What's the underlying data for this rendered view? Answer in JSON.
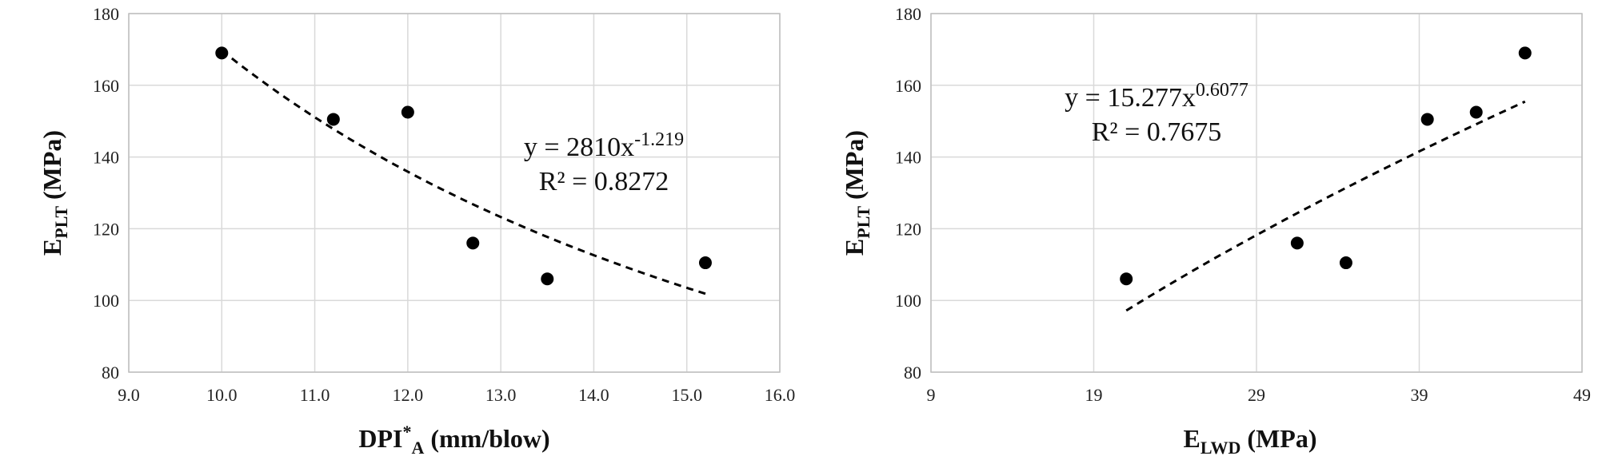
{
  "chart_data": [
    {
      "type": "scatter",
      "x_title": {
        "main": "DPI",
        "sup": "*",
        "sub": "A",
        "rest": " (mm/blow)"
      },
      "y_title": {
        "main": "E",
        "sub": "PLT",
        "rest": " (MPa)"
      },
      "xlim": [
        9.0,
        16.0
      ],
      "ylim": [
        80,
        180
      ],
      "x_ticks": [
        "9.0",
        "10.0",
        "11.0",
        "12.0",
        "13.0",
        "14.0",
        "15.0",
        "16.0"
      ],
      "x_tick_values": [
        9,
        10,
        11,
        12,
        13,
        14,
        15,
        16
      ],
      "y_ticks": [
        "80",
        "100",
        "120",
        "140",
        "160",
        "180"
      ],
      "y_tick_values": [
        80,
        100,
        120,
        140,
        160,
        180
      ],
      "points": [
        {
          "x": 10.0,
          "y": 169
        },
        {
          "x": 11.2,
          "y": 150.5
        },
        {
          "x": 12.0,
          "y": 152.5
        },
        {
          "x": 12.7,
          "y": 116
        },
        {
          "x": 13.5,
          "y": 106
        },
        {
          "x": 15.2,
          "y": 110.5
        }
      ],
      "trendline": {
        "model": "power",
        "a": 2810,
        "b": -1.219,
        "x_from": 10.0,
        "x_to": 15.2
      },
      "equation": {
        "base": "y = 2810x",
        "exp": "-1.219"
      },
      "r2_label": "R² = 0.8272"
    },
    {
      "type": "scatter",
      "x_title": {
        "main": "E",
        "sub": "LWD",
        "rest": " (MPa)"
      },
      "y_title": {
        "main": "E",
        "sub": "PLT",
        "rest": " (MPa)"
      },
      "xlim": [
        9,
        49
      ],
      "ylim": [
        80,
        180
      ],
      "x_ticks": [
        "9",
        "19",
        "29",
        "39",
        "49"
      ],
      "x_tick_values": [
        9,
        19,
        29,
        39,
        49
      ],
      "y_ticks": [
        "80",
        "100",
        "120",
        "140",
        "160",
        "180"
      ],
      "y_tick_values": [
        80,
        100,
        120,
        140,
        160,
        180
      ],
      "points": [
        {
          "x": 21,
          "y": 106
        },
        {
          "x": 31.5,
          "y": 116
        },
        {
          "x": 34.5,
          "y": 110.5
        },
        {
          "x": 39.5,
          "y": 150.5
        },
        {
          "x": 42.5,
          "y": 152.5
        },
        {
          "x": 45.5,
          "y": 169
        }
      ],
      "trendline": {
        "model": "power",
        "a": 15.277,
        "b": 0.6077,
        "x_from": 21,
        "x_to": 45.5
      },
      "equation": {
        "base": "y = 15.277x",
        "exp": "0.6077"
      },
      "r2_label": "R² = 0.7675"
    }
  ]
}
